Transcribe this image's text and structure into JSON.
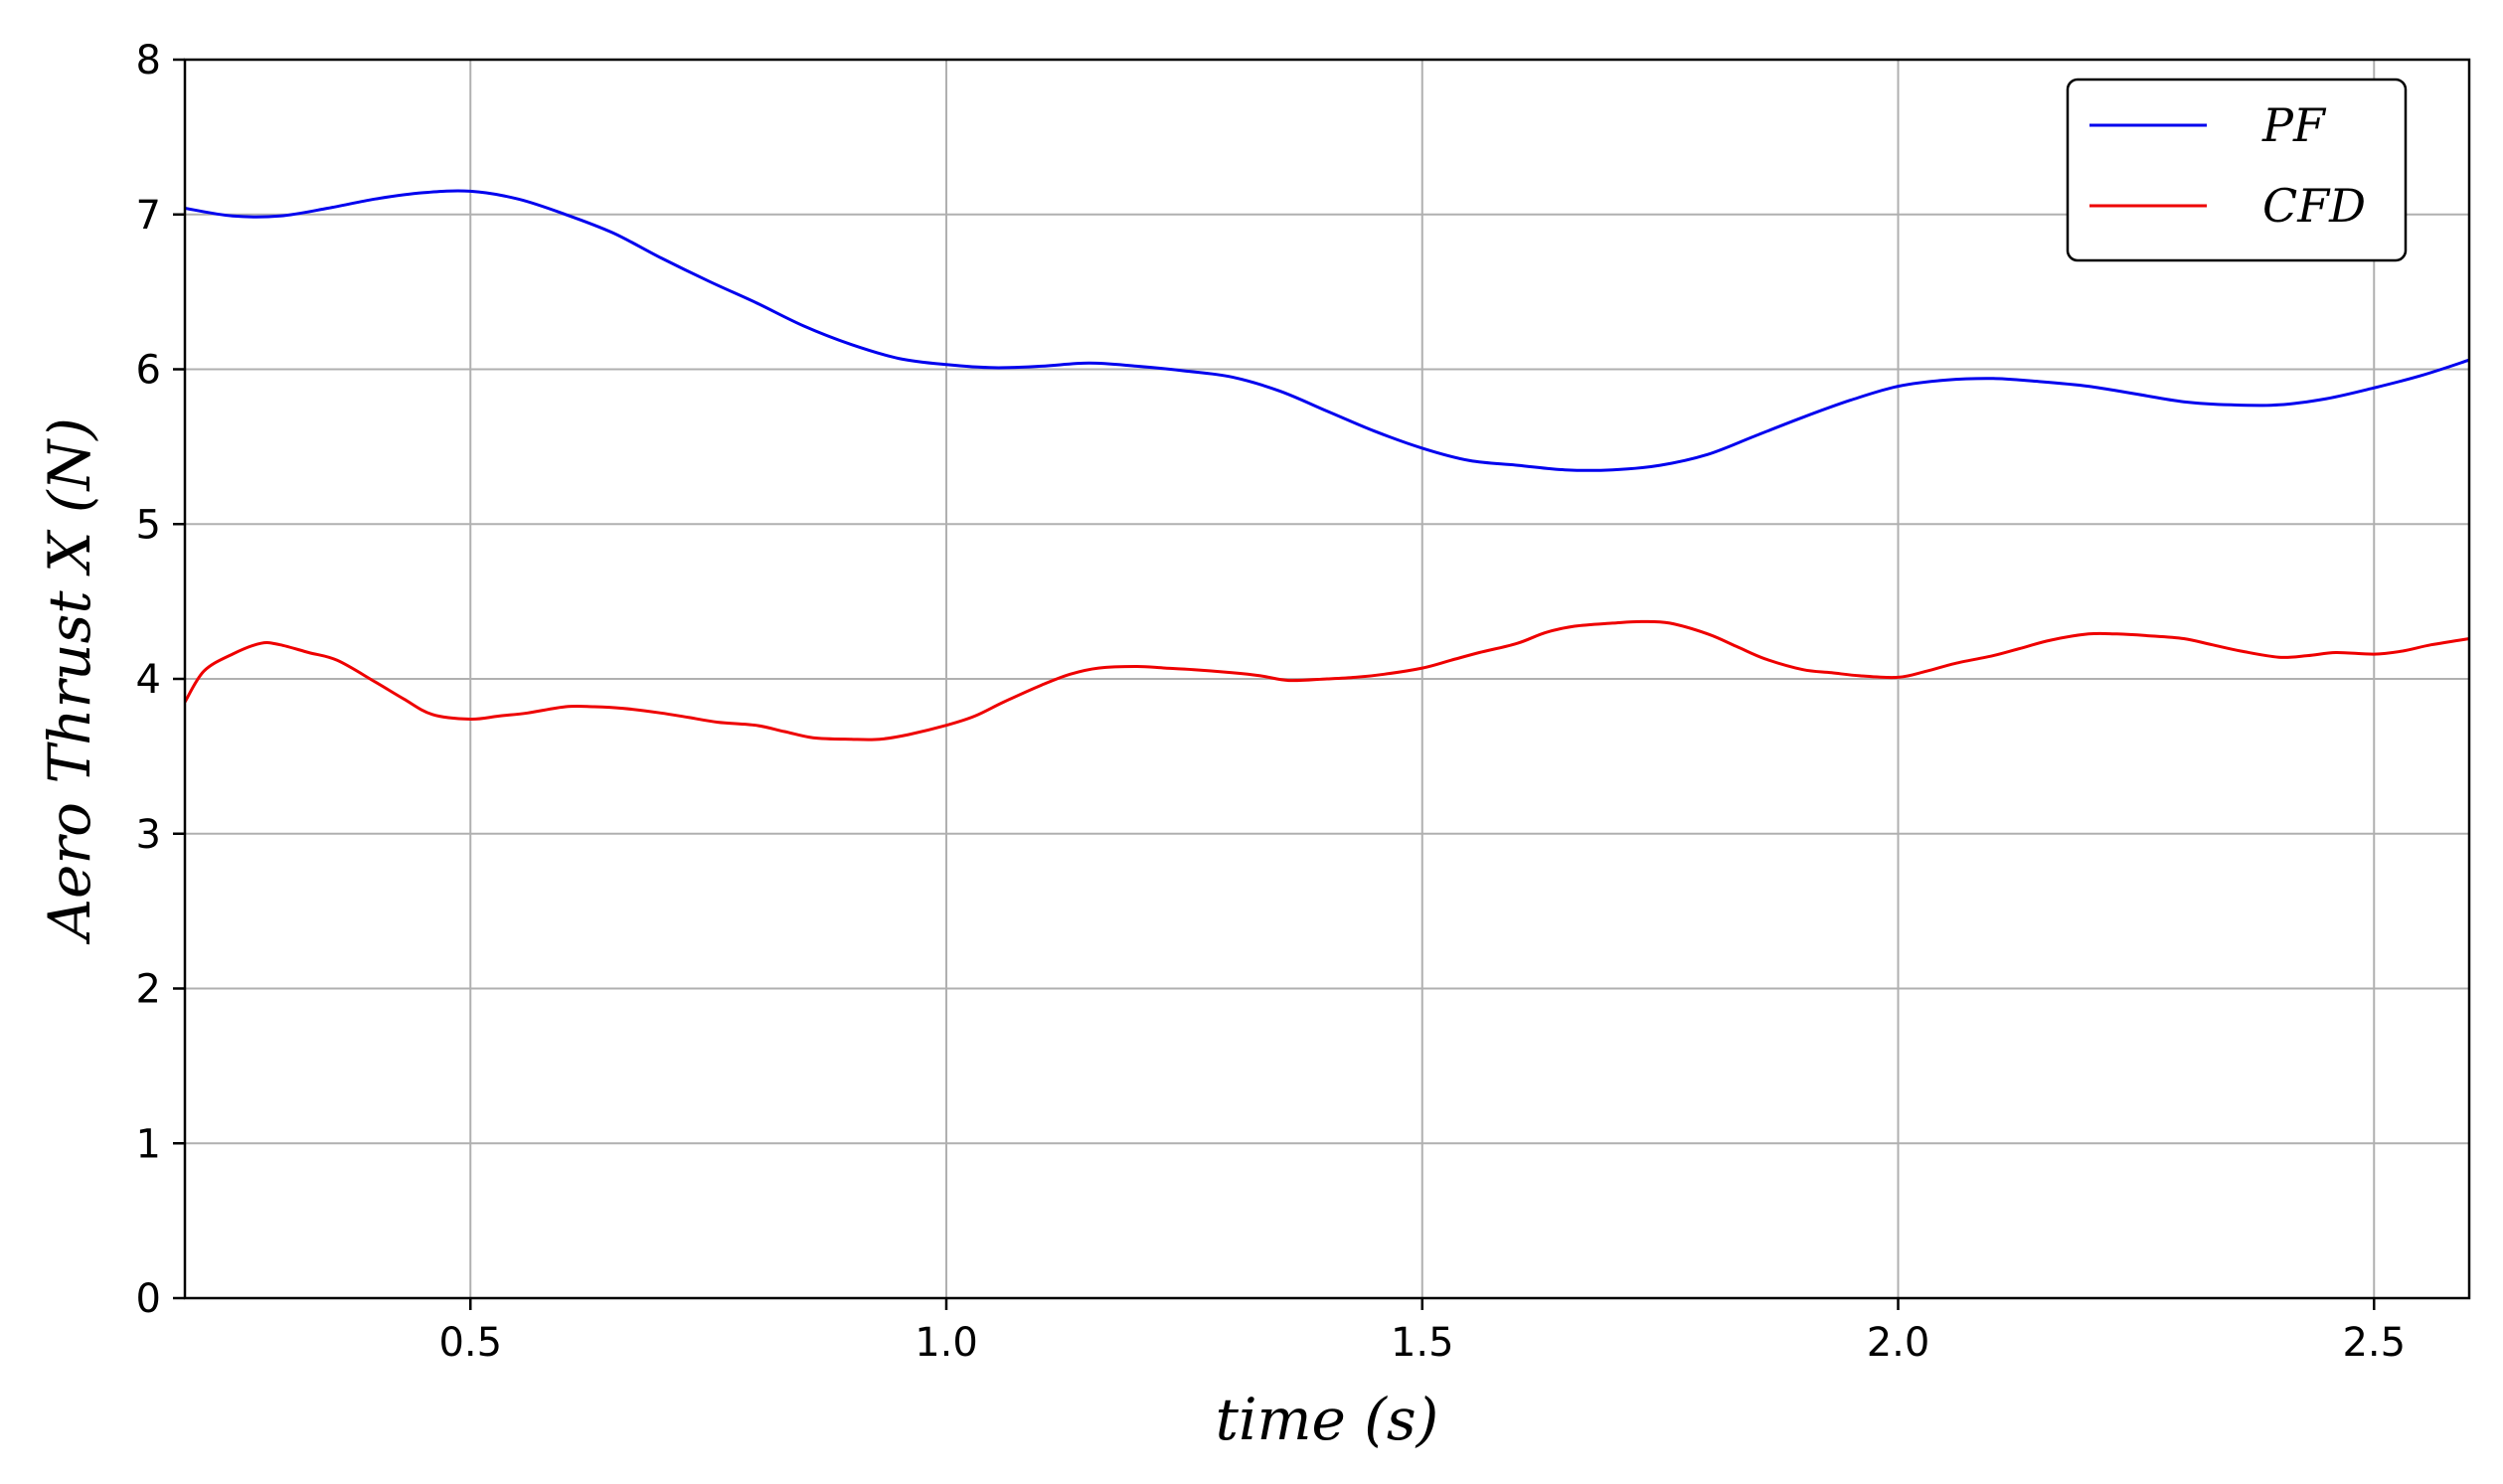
{
  "chart_data": {
    "type": "line",
    "xlabel": "time (s)",
    "ylabel": "Aero Thrust X (N)",
    "xlim": [
      0.2,
      2.6
    ],
    "ylim": [
      0,
      8
    ],
    "x_ticks": [
      0.5,
      1.0,
      1.5,
      2.0,
      2.5
    ],
    "x_tick_labels": [
      "0.5",
      "1.0",
      "1.5",
      "2.0",
      "2.5"
    ],
    "y_ticks": [
      0,
      1,
      2,
      3,
      4,
      5,
      6,
      7,
      8
    ],
    "y_tick_labels": [
      "0",
      "1",
      "2",
      "3",
      "4",
      "5",
      "6",
      "7",
      "8"
    ],
    "grid": true,
    "legend_position": "top-right",
    "series": [
      {
        "name": "PF",
        "color": "#0000ee",
        "x": [
          0.2,
          0.25,
          0.3,
          0.35,
          0.4,
          0.45,
          0.5,
          0.55,
          0.6,
          0.65,
          0.7,
          0.75,
          0.8,
          0.85,
          0.9,
          0.95,
          1.0,
          1.05,
          1.1,
          1.15,
          1.2,
          1.25,
          1.3,
          1.35,
          1.4,
          1.45,
          1.5,
          1.55,
          1.6,
          1.65,
          1.7,
          1.75,
          1.8,
          1.85,
          1.9,
          1.95,
          2.0,
          2.05,
          2.1,
          2.15,
          2.2,
          2.25,
          2.3,
          2.35,
          2.4,
          2.45,
          2.5,
          2.55,
          2.6
        ],
        "y": [
          7.04,
          6.99,
          6.99,
          7.04,
          7.1,
          7.14,
          7.15,
          7.1,
          7.0,
          6.88,
          6.72,
          6.57,
          6.43,
          6.28,
          6.16,
          6.07,
          6.03,
          6.01,
          6.02,
          6.04,
          6.02,
          5.99,
          5.95,
          5.86,
          5.73,
          5.6,
          5.49,
          5.41,
          5.38,
          5.35,
          5.35,
          5.38,
          5.45,
          5.57,
          5.69,
          5.8,
          5.89,
          5.93,
          5.94,
          5.92,
          5.89,
          5.84,
          5.79,
          5.77,
          5.77,
          5.81,
          5.88,
          5.96,
          6.06
        ]
      },
      {
        "name": "CFD",
        "color": "#ee0000",
        "x": [
          0.2,
          0.22,
          0.25,
          0.28,
          0.3,
          0.33,
          0.36,
          0.4,
          0.43,
          0.46,
          0.5,
          0.53,
          0.56,
          0.6,
          0.63,
          0.66,
          0.7,
          0.73,
          0.76,
          0.8,
          0.83,
          0.86,
          0.9,
          0.93,
          0.96,
          1.0,
          1.03,
          1.06,
          1.1,
          1.13,
          1.16,
          1.2,
          1.23,
          1.26,
          1.3,
          1.33,
          1.36,
          1.4,
          1.43,
          1.46,
          1.5,
          1.53,
          1.56,
          1.6,
          1.63,
          1.66,
          1.7,
          1.73,
          1.76,
          1.8,
          1.83,
          1.86,
          1.9,
          1.93,
          1.96,
          2.0,
          2.03,
          2.06,
          2.1,
          2.13,
          2.16,
          2.2,
          2.23,
          2.26,
          2.3,
          2.33,
          2.36,
          2.4,
          2.43,
          2.46,
          2.5,
          2.53,
          2.56,
          2.6
        ],
        "y": [
          3.85,
          4.05,
          4.16,
          4.23,
          4.22,
          4.17,
          4.12,
          3.98,
          3.87,
          3.77,
          3.74,
          3.76,
          3.78,
          3.82,
          3.82,
          3.81,
          3.78,
          3.75,
          3.72,
          3.7,
          3.66,
          3.62,
          3.61,
          3.61,
          3.64,
          3.7,
          3.76,
          3.85,
          3.96,
          4.03,
          4.07,
          4.08,
          4.07,
          4.06,
          4.04,
          4.02,
          3.99,
          4.0,
          4.01,
          4.03,
          4.07,
          4.12,
          4.17,
          4.23,
          4.3,
          4.34,
          4.36,
          4.37,
          4.36,
          4.29,
          4.21,
          4.13,
          4.06,
          4.04,
          4.02,
          4.01,
          4.05,
          4.1,
          4.15,
          4.2,
          4.25,
          4.29,
          4.29,
          4.28,
          4.26,
          4.22,
          4.18,
          4.14,
          4.15,
          4.17,
          4.16,
          4.18,
          4.22,
          4.26
        ]
      }
    ]
  }
}
